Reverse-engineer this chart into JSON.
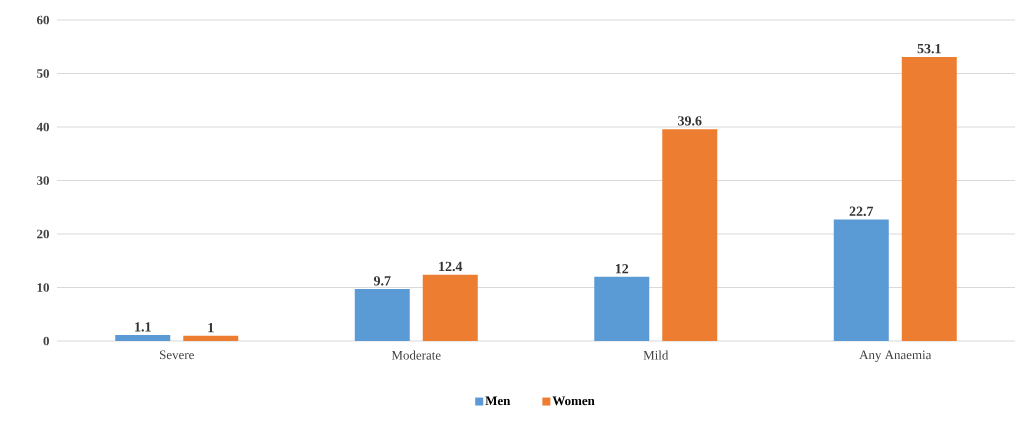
{
  "chart_data": {
    "type": "bar",
    "categories": [
      "Severe",
      "Moderate",
      "Mild",
      "Any Anaemia"
    ],
    "series": [
      {
        "name": "Men",
        "color": "#5b9bd5",
        "values": [
          1.1,
          9.7,
          12,
          22.7
        ]
      },
      {
        "name": "Women",
        "color": "#ed7d31",
        "values": [
          1,
          12.4,
          39.6,
          53.1
        ]
      }
    ],
    "ylim": [
      0,
      60
    ],
    "yticks": [
      0,
      10,
      20,
      30,
      40,
      50,
      60
    ],
    "grid": "y",
    "legend": "bottom",
    "data_labels": true
  }
}
